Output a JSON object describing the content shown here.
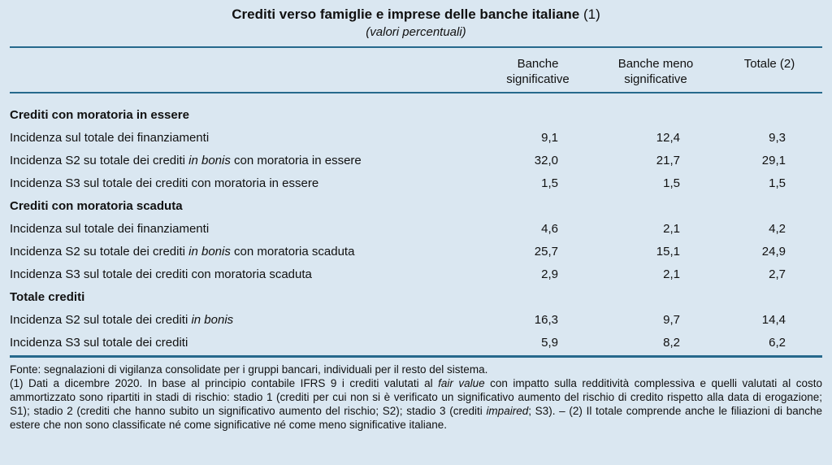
{
  "figure": {
    "title": "Crediti verso famiglie e imprese delle banche italiane",
    "title_ref": " (1)",
    "subtitle": "(valori percentuali)"
  },
  "table": {
    "columns": [
      "Banche significative",
      "Banche meno significative",
      "Totale (2)"
    ],
    "sections": [
      {
        "header": "Crediti con moratoria in essere",
        "rows": [
          {
            "pre": "Incidenza sul totale dei finanziamenti",
            "italic": "",
            "post": "",
            "values": [
              "9,1",
              "12,4",
              "9,3"
            ]
          },
          {
            "pre": "Incidenza S2 su totale dei crediti ",
            "italic": "in bonis",
            "post": " con moratoria in essere",
            "values": [
              "32,0",
              "21,7",
              "29,1"
            ]
          },
          {
            "pre": "Incidenza S3 sul totale dei crediti con moratoria in essere",
            "italic": "",
            "post": "",
            "values": [
              "1,5",
              "1,5",
              "1,5"
            ]
          }
        ]
      },
      {
        "header": "Crediti con moratoria scaduta",
        "rows": [
          {
            "pre": "Incidenza sul totale dei finanziamenti",
            "italic": "",
            "post": "",
            "values": [
              "4,6",
              "2,1",
              "4,2"
            ]
          },
          {
            "pre": "Incidenza S2 su totale dei crediti ",
            "italic": "in bonis",
            "post": " con moratoria scaduta",
            "values": [
              "25,7",
              "15,1",
              "24,9"
            ]
          },
          {
            "pre": "Incidenza S3 sul totale dei crediti con moratoria scaduta",
            "italic": "",
            "post": "",
            "values": [
              "2,9",
              "2,1",
              "2,7"
            ]
          }
        ]
      },
      {
        "header": "Totale crediti",
        "rows": [
          {
            "pre": "Incidenza S2 sul totale dei crediti ",
            "italic": "in bonis",
            "post": "",
            "values": [
              "16,3",
              "9,7",
              "14,4"
            ]
          },
          {
            "pre": "Incidenza S3 sul totale dei crediti",
            "italic": "",
            "post": "",
            "values": [
              "5,9",
              "8,2",
              "6,2"
            ]
          }
        ]
      }
    ]
  },
  "footnotes": {
    "source": "Fonte: segnalazioni di vigilanza consolidate per i gruppi bancari, individuali per il resto del sistema.",
    "note_parts": [
      "(1) Dati a dicembre 2020. In base al principio contabile IFRS 9 i crediti valutati al ",
      "fair value",
      " con impatto sulla redditività complessiva e quelli valutati al costo ammortizzato sono ripartiti in stadi di rischio: stadio 1 (crediti per cui non si è verificato un significativo aumento del rischio di credito rispetto alla data di erogazione; S1); stadio 2 (crediti che hanno subito un significativo aumento del rischio; S2); stadio 3 (crediti ",
      "impaired",
      "; S3). – (2) Il totale comprende anche le filiazioni di banche estere che non sono classificate né come significative né come meno significative italiane."
    ]
  },
  "colors": {
    "background": "#dae7f1",
    "rule": "#26698c",
    "text": "#111111"
  }
}
